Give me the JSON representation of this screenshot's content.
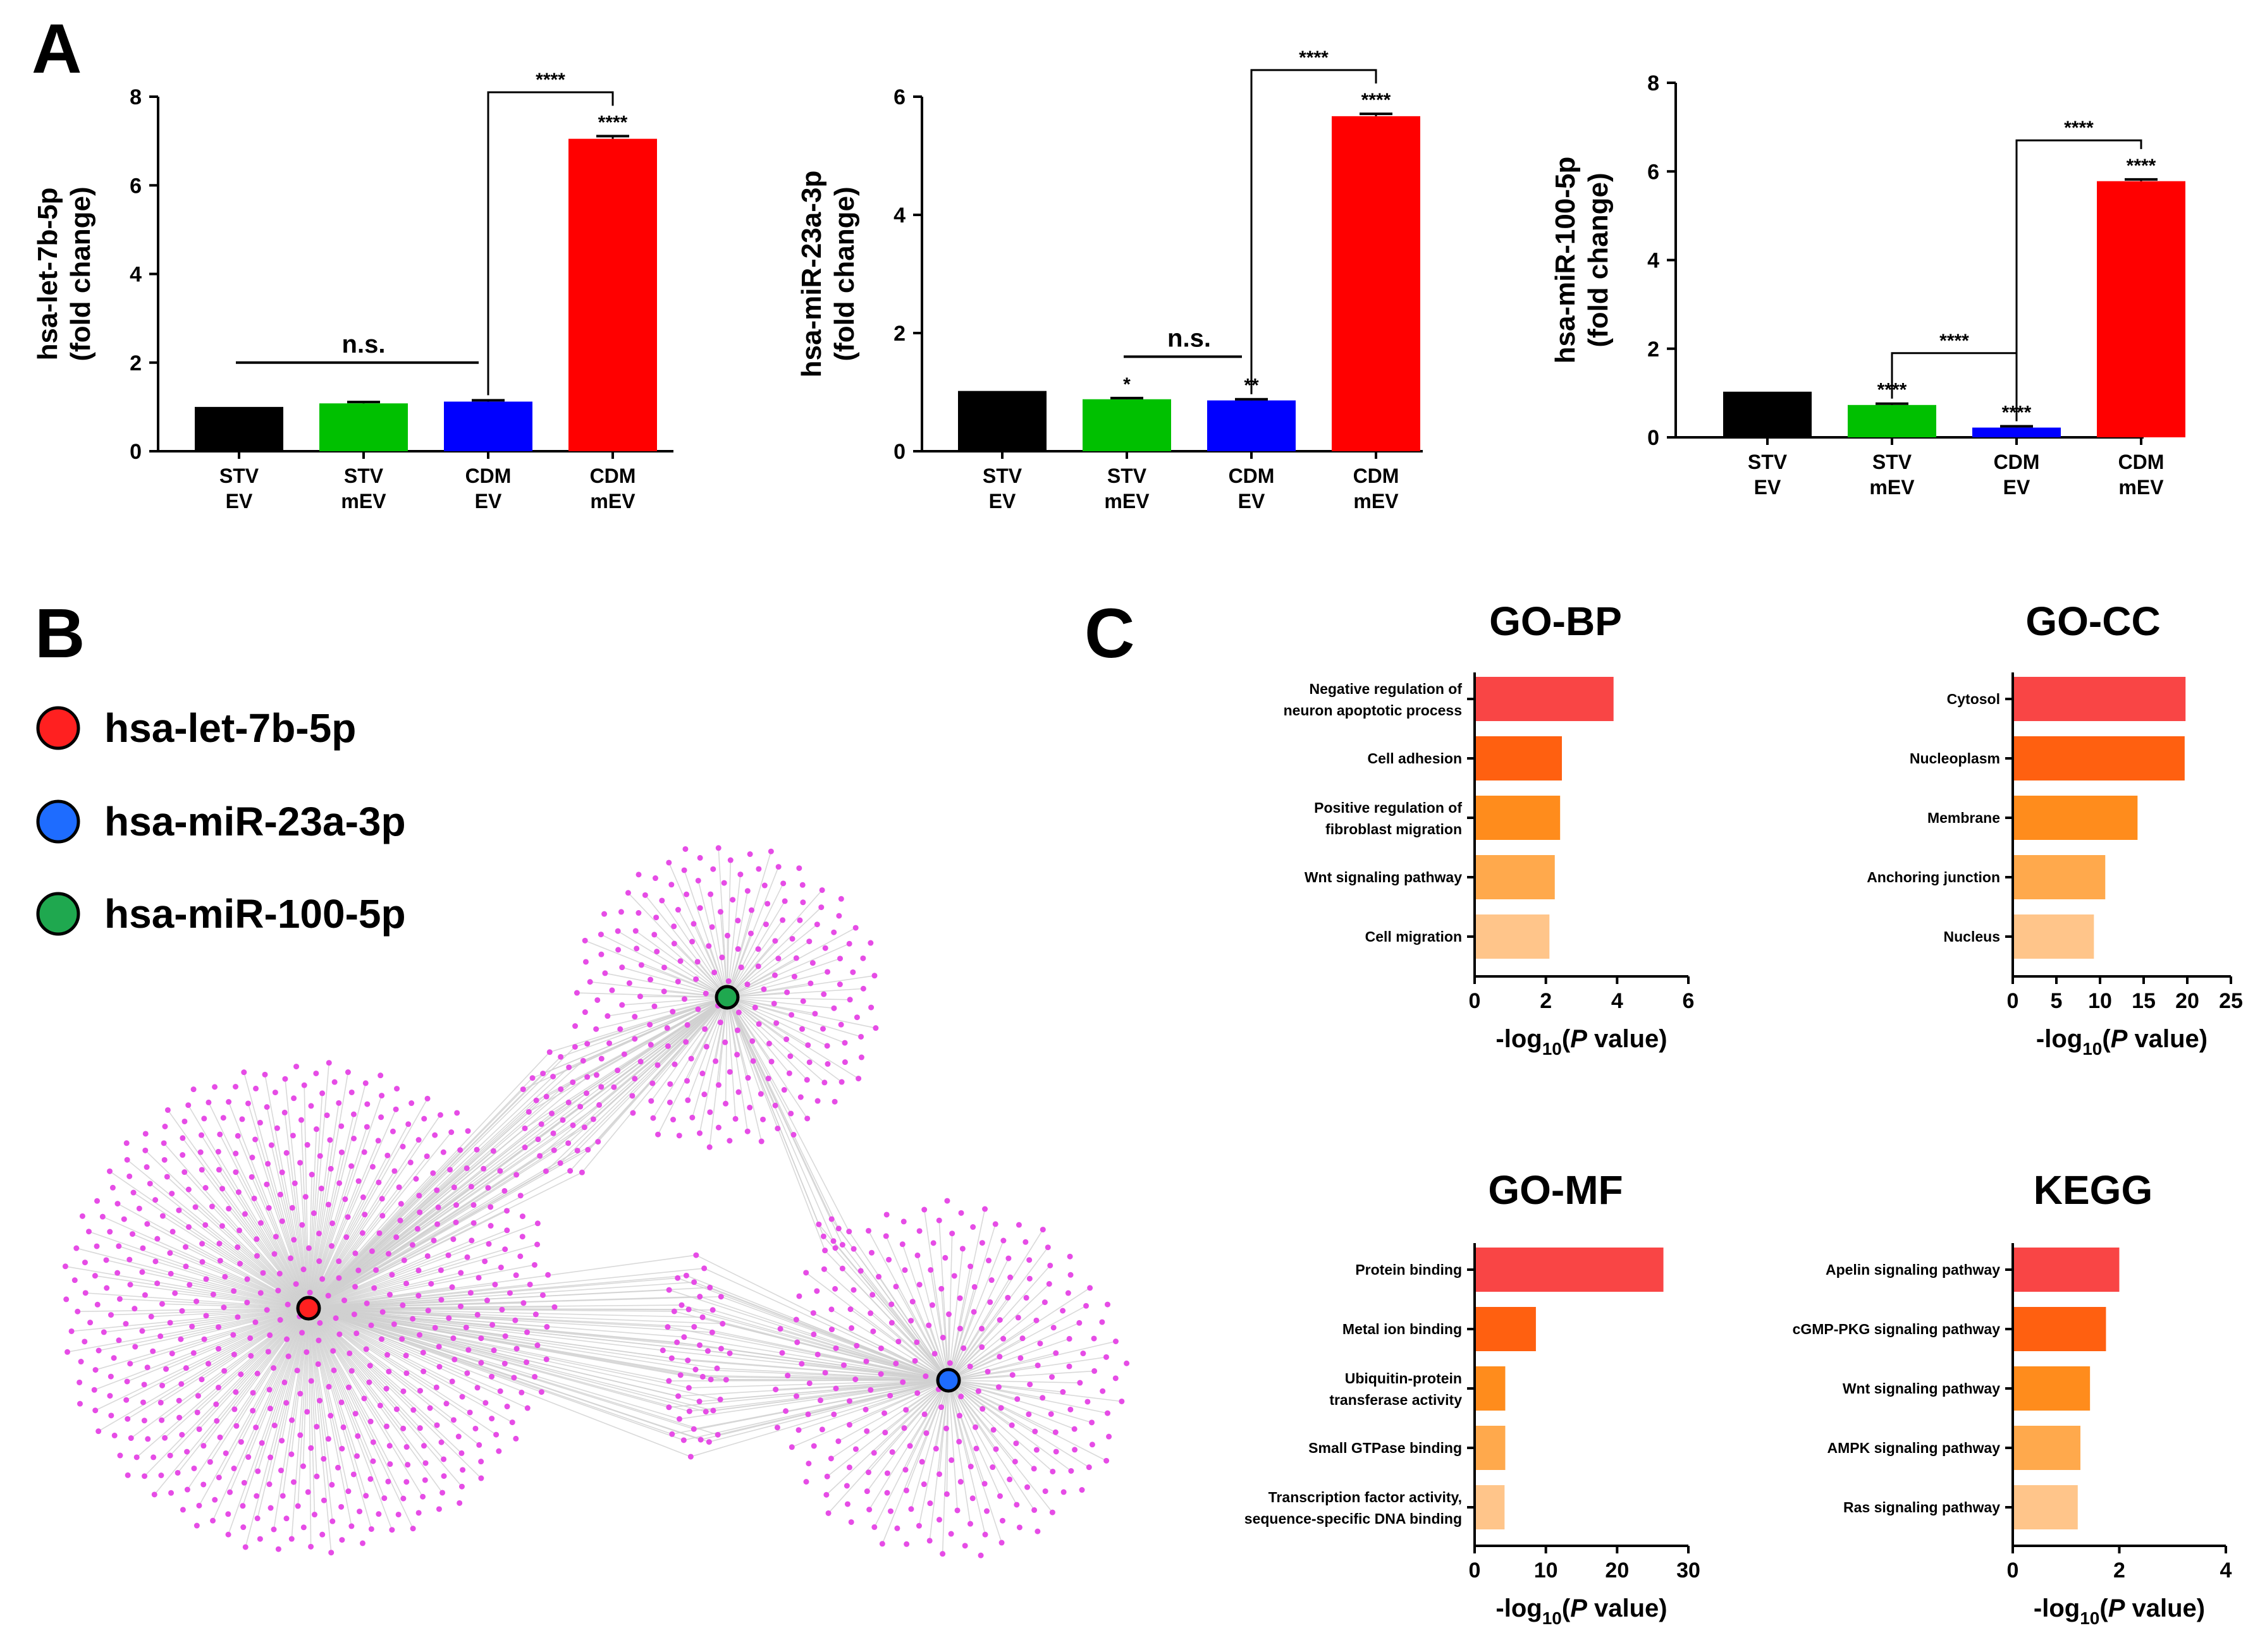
{
  "panels": {
    "a": "A",
    "b": "B",
    "c": "C"
  },
  "chart_data": [
    {
      "type": "bar",
      "ylabel_line1": "hsa-let-7b-5p",
      "ylabel_line2": "(fold change)",
      "categories": [
        [
          "STV",
          "EV"
        ],
        [
          "STV",
          "mEV"
        ],
        [
          "CDM",
          "EV"
        ],
        [
          "CDM",
          "mEV"
        ]
      ],
      "values": [
        1.0,
        1.08,
        1.12,
        7.05
      ],
      "errors": [
        0.0,
        0.03,
        0.03,
        0.06
      ],
      "colors": [
        "#000000",
        "#00c000",
        "#0000ff",
        "#ff0000"
      ],
      "ylim": [
        0,
        8
      ],
      "yticks": [
        0,
        2,
        4,
        6,
        8
      ],
      "bar_marks": [
        "",
        "",
        "",
        "****"
      ],
      "ns_label": "n.s.",
      "ns_from": 0,
      "ns_to": 2,
      "ns_level": 2.0,
      "brackets": [
        {
          "from": 2,
          "to": 3,
          "level": 8.1,
          "label": "****"
        }
      ]
    },
    {
      "type": "bar",
      "ylabel_line1": "hsa-miR-23a-3p",
      "ylabel_line2": "(fold change)",
      "categories": [
        [
          "STV",
          "EV"
        ],
        [
          "STV",
          "mEV"
        ],
        [
          "CDM",
          "EV"
        ],
        [
          "CDM",
          "mEV"
        ]
      ],
      "values": [
        1.02,
        0.88,
        0.86,
        5.67
      ],
      "errors": [
        0.0,
        0.02,
        0.02,
        0.04
      ],
      "colors": [
        "#000000",
        "#00c000",
        "#0000ff",
        "#ff0000"
      ],
      "ylim": [
        0,
        6
      ],
      "yticks": [
        0,
        2,
        4,
        6
      ],
      "bar_marks": [
        "",
        "*",
        "**",
        "****"
      ],
      "ns_label": "n.s.",
      "ns_from": 1,
      "ns_to": 2,
      "ns_level": 1.6,
      "brackets": [
        {
          "from": 2,
          "to": 3,
          "level": 6.45,
          "label": "****"
        }
      ]
    },
    {
      "type": "bar",
      "ylabel_line1": "hsa-miR-100-5p",
      "ylabel_line2": "(fold change)",
      "categories": [
        [
          "STV",
          "EV"
        ],
        [
          "STV",
          "mEV"
        ],
        [
          "CDM",
          "EV"
        ],
        [
          "CDM",
          "mEV"
        ]
      ],
      "values": [
        1.03,
        0.73,
        0.22,
        5.78
      ],
      "errors": [
        0.0,
        0.03,
        0.03,
        0.04
      ],
      "colors": [
        "#000000",
        "#00c000",
        "#0000ff",
        "#ff0000"
      ],
      "ylim": [
        0,
        8
      ],
      "yticks": [
        0,
        2,
        4,
        6,
        8
      ],
      "bar_marks": [
        "",
        "****",
        "****",
        "****"
      ],
      "brackets": [
        {
          "from": 1,
          "to": 2,
          "level": 1.9,
          "label": "****"
        },
        {
          "from": 2,
          "to": 3,
          "level": 6.7,
          "label": "****"
        }
      ]
    },
    {
      "type": "network",
      "legend": [
        {
          "label": "hsa-let-7b-5p",
          "color": "#ff2020"
        },
        {
          "label": "hsa-miR-23a-3p",
          "color": "#1e6cff"
        },
        {
          "label": "hsa-miR-100-5p",
          "color": "#1fa84f"
        }
      ],
      "node_color": "#e64ce6",
      "edge_color": "#cfcfcf"
    },
    {
      "type": "bar",
      "orientation": "horizontal",
      "title": "GO-BP",
      "categories": [
        [
          "Negative regulation of",
          "neuron apoptotic process"
        ],
        [
          "Cell adhesion"
        ],
        [
          "Positive regulation of",
          "fibroblast migration"
        ],
        [
          "Wnt signaling pathway"
        ],
        [
          "Cell migration"
        ]
      ],
      "values": [
        3.9,
        2.45,
        2.4,
        2.25,
        2.1
      ],
      "xlim": [
        0,
        6
      ],
      "xticks": [
        0,
        2,
        4,
        6
      ],
      "xlabel_pre": "-log",
      "xlabel_sub": "10",
      "xlabel_paren": "(",
      "xlabel_p": "P",
      "xlabel_post": " value)"
    },
    {
      "type": "bar",
      "orientation": "horizontal",
      "title": "GO-CC",
      "categories": [
        [
          "Cytosol"
        ],
        [
          "Nucleoplasm"
        ],
        [
          "Membrane"
        ],
        [
          "Anchoring junction"
        ],
        [
          "Nucleus"
        ]
      ],
      "values": [
        19.8,
        19.7,
        14.3,
        10.6,
        9.3
      ],
      "xlim": [
        0,
        25
      ],
      "xticks": [
        0,
        5,
        10,
        15,
        20,
        25
      ],
      "xlabel_pre": "-log",
      "xlabel_sub": "10",
      "xlabel_paren": "(",
      "xlabel_p": "P",
      "xlabel_post": " value)"
    },
    {
      "type": "bar",
      "orientation": "horizontal",
      "title": "GO-MF",
      "categories": [
        [
          "Protein binding"
        ],
        [
          "Metal ion binding"
        ],
        [
          "Ubiquitin-protein",
          "transferase activity"
        ],
        [
          "Small GTPase binding"
        ],
        [
          "Transcription factor activity,",
          "sequence-specific DNA binding"
        ]
      ],
      "values": [
        26.5,
        8.6,
        4.3,
        4.3,
        4.2
      ],
      "xlim": [
        0,
        30
      ],
      "xticks": [
        0,
        10,
        20,
        30
      ],
      "xlabel_pre": "-log",
      "xlabel_sub": "10",
      "xlabel_paren": "(",
      "xlabel_p": "P",
      "xlabel_post": " value)"
    },
    {
      "type": "bar",
      "orientation": "horizontal",
      "title": "KEGG",
      "categories": [
        [
          "Apelin signaling pathway"
        ],
        [
          "cGMP-PKG signaling pathway"
        ],
        [
          "Wnt signaling pathway"
        ],
        [
          "AMPK signaling pathway"
        ],
        [
          "Ras signaling pathway"
        ]
      ],
      "values": [
        2.0,
        1.75,
        1.45,
        1.27,
        1.22
      ],
      "xlim": [
        0,
        4
      ],
      "xticks": [
        0,
        2,
        4
      ],
      "xlabel_pre": "-log",
      "xlabel_sub": "10",
      "xlabel_paren": "(",
      "xlabel_p": "P",
      "xlabel_post": " value)"
    }
  ],
  "go_colors": [
    "#f94545",
    "#ff6010",
    "#ff8c1c",
    "#ffa94c",
    "#ffc58a"
  ]
}
